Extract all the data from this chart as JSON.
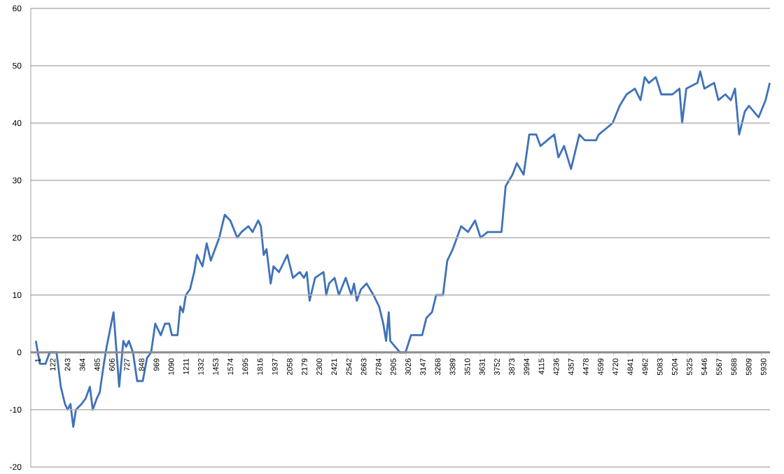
{
  "chart_data": {
    "type": "line",
    "color": "#3f72b8",
    "grid": "y",
    "xlim": [
      -40,
      6000
    ],
    "ylim": [
      -20,
      60
    ],
    "yticks": [
      -20,
      -10,
      0,
      10,
      20,
      30,
      40,
      50,
      60
    ],
    "xticks": [
      1,
      122,
      243,
      364,
      485,
      606,
      727,
      848,
      969,
      1090,
      1211,
      1332,
      1453,
      1574,
      1695,
      1816,
      1937,
      2058,
      2179,
      2300,
      2421,
      2542,
      2663,
      2784,
      2905,
      3026,
      3147,
      3268,
      3389,
      3510,
      3631,
      3752,
      3873,
      3994,
      4115,
      4236,
      4357,
      4478,
      4599,
      4720,
      4841,
      4962,
      5083,
      5204,
      5325,
      5446,
      5567,
      5688,
      5809,
      5930
    ],
    "x": [
      1,
      34,
      80,
      114,
      170,
      182,
      205,
      239,
      261,
      284,
      307,
      329,
      375,
      409,
      443,
      466,
      500,
      523,
      557,
      580,
      636,
      682,
      716,
      739,
      761,
      795,
      829,
      875,
      909,
      943,
      977,
      1022,
      1056,
      1091,
      1113,
      1159,
      1181,
      1204,
      1227,
      1261,
      1295,
      1318,
      1363,
      1397,
      1431,
      1465,
      1500,
      1522,
      1545,
      1590,
      1647,
      1681,
      1738,
      1772,
      1818,
      1840,
      1863,
      1886,
      1920,
      1943,
      1988,
      2011,
      2056,
      2079,
      2102,
      2158,
      2192,
      2215,
      2238,
      2283,
      2352,
      2374,
      2397,
      2442,
      2477,
      2533,
      2579,
      2601,
      2624,
      2658,
      2704,
      2760,
      2806,
      2840,
      2863,
      2885,
      2897,
      2976,
      3022,
      3067,
      3158,
      3192,
      3238,
      3272,
      3328,
      3363,
      3408,
      3442,
      3476,
      3533,
      3590,
      3635,
      3692,
      3806,
      3840,
      3896,
      3931,
      3987,
      4033,
      4090,
      4124,
      4180,
      4237,
      4271,
      4317,
      4374,
      4442,
      4487,
      4578,
      4601,
      4658,
      4714,
      4771,
      4828,
      4896,
      4942,
      4976,
      5010,
      5067,
      5112,
      5203,
      5260,
      5282,
      5316,
      5407,
      5430,
      5464,
      5544,
      5578,
      5635,
      5680,
      5714,
      5748,
      5794,
      5828,
      5907,
      5964,
      5998
    ],
    "values": [
      2,
      -2,
      -2,
      0,
      0,
      -2,
      -6,
      -9,
      -10,
      -9,
      -13,
      -10,
      -9,
      -8,
      -6,
      -10,
      -8,
      -7,
      -2,
      1,
      7,
      -6,
      2,
      1,
      2,
      0,
      -5,
      -5,
      -1,
      0,
      5,
      3,
      5,
      5,
      3,
      3,
      8,
      7,
      10,
      11,
      14,
      17,
      15,
      19,
      16,
      18,
      20,
      22,
      24,
      23,
      20,
      21,
      22,
      21,
      23,
      22,
      17,
      18,
      12,
      15,
      14,
      15,
      17,
      15,
      13,
      14,
      13,
      14,
      9,
      13,
      14,
      10,
      12,
      13,
      10,
      13,
      10,
      12,
      9,
      11,
      12,
      10,
      8,
      5,
      2,
      7,
      2,
      0,
      0,
      3,
      3,
      6,
      7,
      10,
      10,
      16,
      18,
      20,
      22,
      21,
      23,
      20,
      21,
      21,
      29,
      31,
      33,
      31,
      38,
      38,
      36,
      37,
      38,
      34,
      36,
      32,
      38,
      37,
      37,
      38,
      39,
      40,
      43,
      45,
      46,
      44,
      48,
      47,
      48,
      45,
      45,
      46,
      40,
      46,
      47,
      49,
      46,
      47,
      44,
      45,
      44,
      46,
      38,
      42,
      43,
      41,
      44,
      47
    ]
  }
}
